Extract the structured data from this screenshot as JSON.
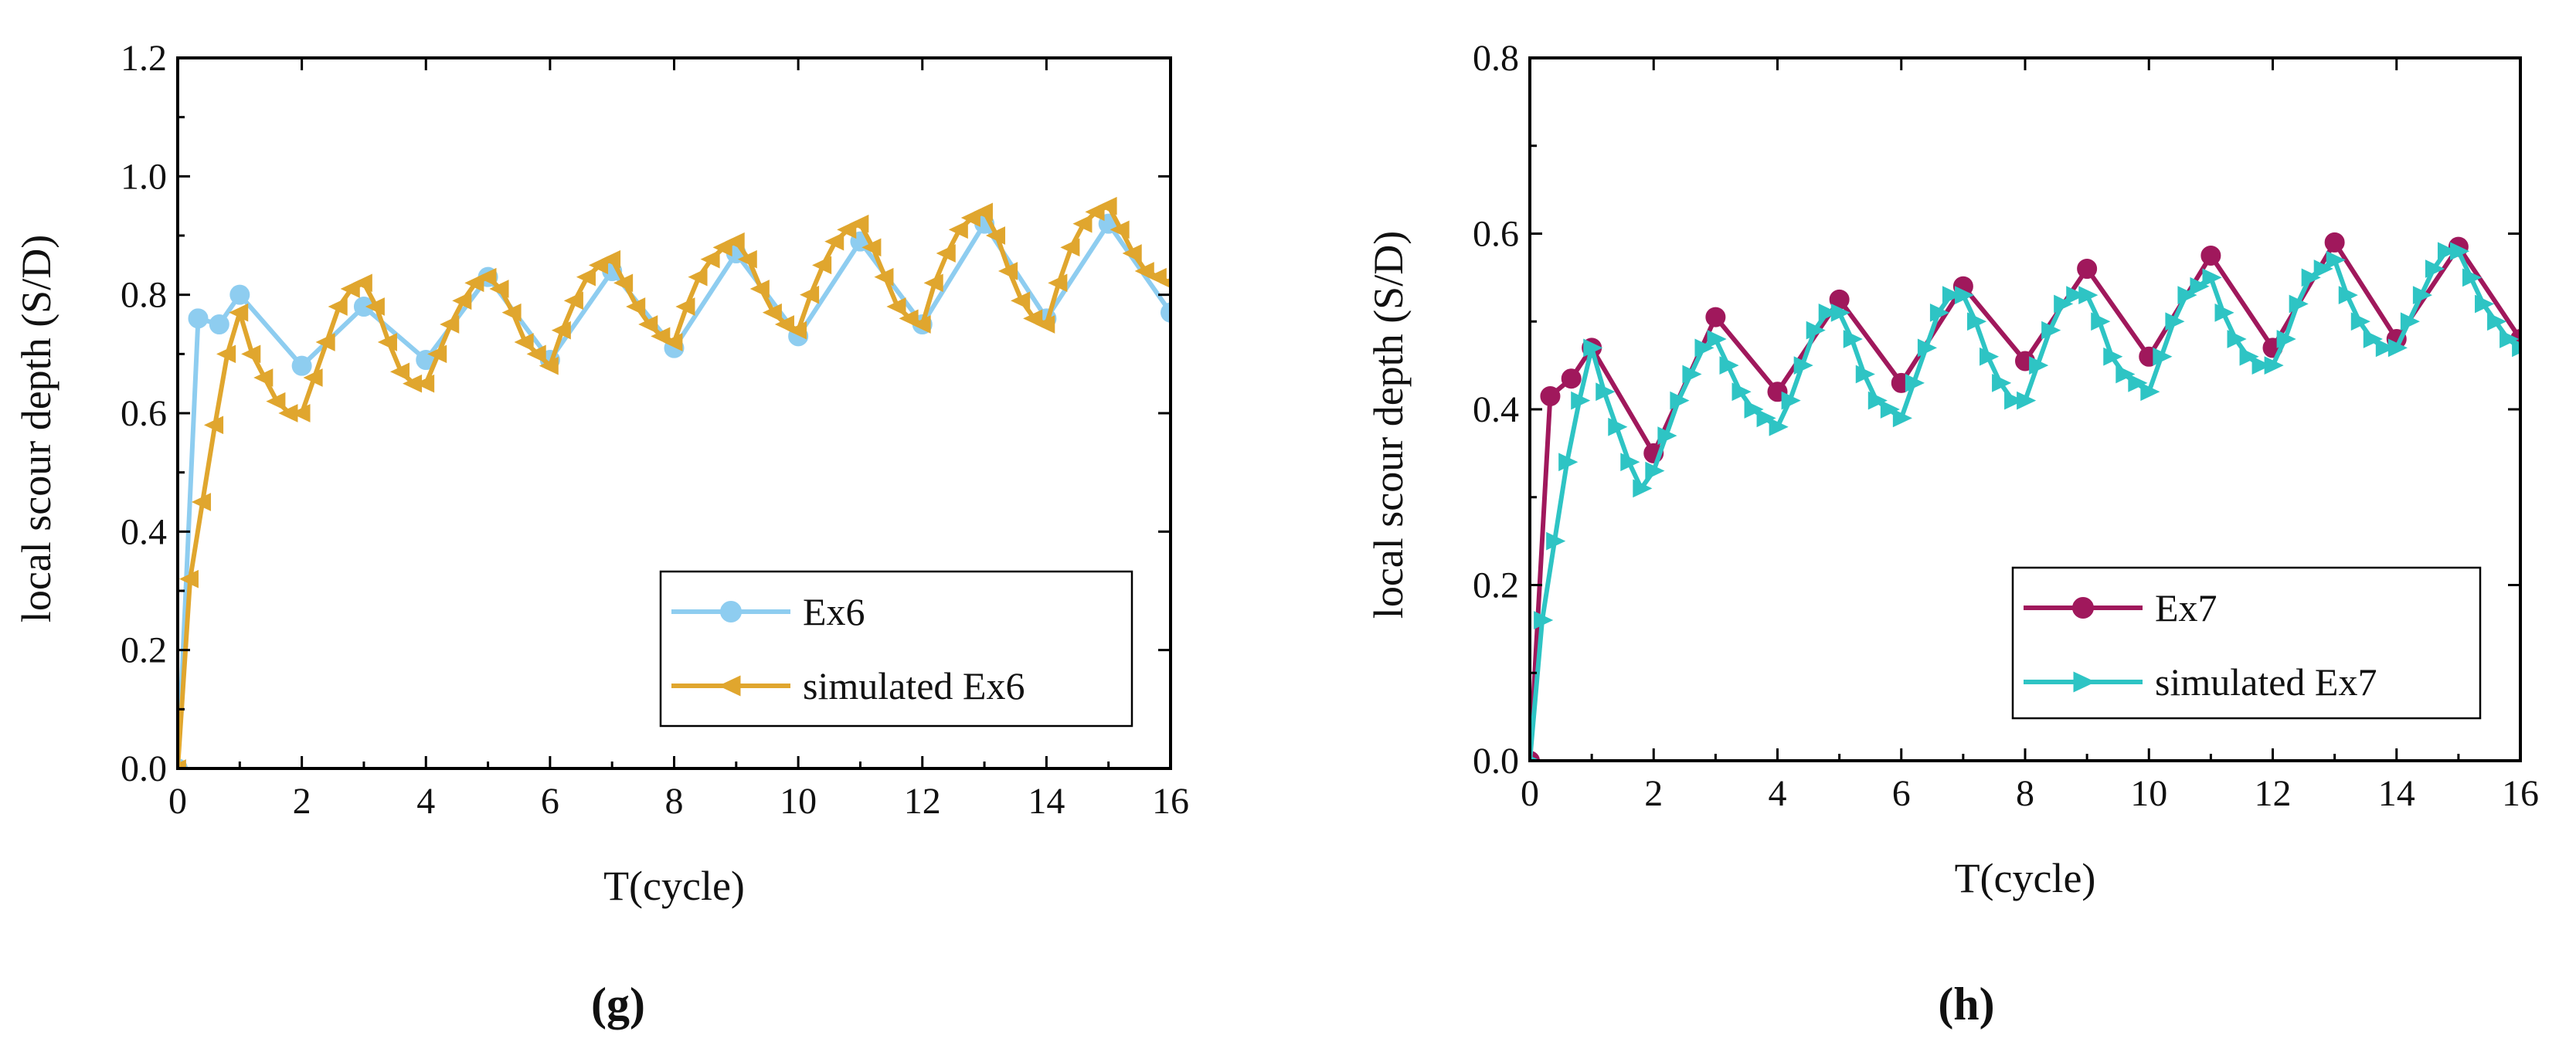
{
  "chart_data": [
    {
      "type": "line",
      "panel_label": "(g)",
      "xlabel": "T(cycle)",
      "ylabel": "local scour depth (S/D)",
      "xlim": [
        0,
        16
      ],
      "ylim": [
        0,
        1.2
      ],
      "xticks": [
        0,
        2,
        4,
        6,
        8,
        10,
        12,
        14,
        16
      ],
      "yticks": [
        0.0,
        0.2,
        0.4,
        0.6,
        0.8,
        1.0,
        1.2
      ],
      "xtick_labels": [
        "0",
        "2",
        "4",
        "6",
        "8",
        "10",
        "12",
        "14",
        "16"
      ],
      "ytick_labels": [
        "0.0",
        "0.2",
        "0.4",
        "0.6",
        "0.8",
        "1.0",
        "1.2"
      ],
      "grid": false,
      "legend_position": "bottom-right",
      "series": [
        {
          "name": "Ex6",
          "color": "#8ecdf0",
          "marker": "circle",
          "x": [
            0,
            0.33,
            0.67,
            1,
            2,
            3,
            4,
            5,
            6,
            7,
            8,
            9,
            10,
            11,
            12,
            13,
            14,
            15,
            16
          ],
          "y": [
            0,
            0.76,
            0.75,
            0.8,
            0.68,
            0.78,
            0.69,
            0.83,
            0.69,
            0.84,
            0.71,
            0.87,
            0.73,
            0.89,
            0.75,
            0.92,
            0.76,
            0.92,
            0.77
          ]
        },
        {
          "name": "simulated Ex6",
          "color": "#e0a62e",
          "marker": "triangle-left",
          "x": [
            0,
            0.2,
            0.4,
            0.6,
            0.8,
            1.0,
            1.2,
            1.4,
            1.6,
            1.8,
            2.0,
            2.2,
            2.4,
            2.6,
            2.8,
            3.0,
            3.2,
            3.4,
            3.6,
            3.8,
            4.0,
            4.2,
            4.4,
            4.6,
            4.8,
            5.0,
            5.2,
            5.4,
            5.6,
            5.8,
            6.0,
            6.2,
            6.4,
            6.6,
            6.8,
            7.0,
            7.2,
            7.4,
            7.6,
            7.8,
            8.0,
            8.2,
            8.4,
            8.6,
            8.8,
            9.0,
            9.2,
            9.4,
            9.6,
            9.8,
            10.0,
            10.2,
            10.4,
            10.6,
            10.8,
            11.0,
            11.2,
            11.4,
            11.6,
            11.8,
            12.0,
            12.2,
            12.4,
            12.6,
            12.8,
            13.0,
            13.2,
            13.4,
            13.6,
            13.8,
            14.0,
            14.2,
            14.4,
            14.6,
            14.8,
            15.0,
            15.2,
            15.4,
            15.6,
            15.8,
            16.0
          ],
          "y": [
            0,
            0.32,
            0.45,
            0.58,
            0.7,
            0.77,
            0.7,
            0.66,
            0.62,
            0.6,
            0.6,
            0.66,
            0.72,
            0.78,
            0.81,
            0.82,
            0.78,
            0.72,
            0.67,
            0.65,
            0.65,
            0.7,
            0.75,
            0.79,
            0.82,
            0.83,
            0.81,
            0.77,
            0.72,
            0.7,
            0.68,
            0.74,
            0.79,
            0.83,
            0.85,
            0.86,
            0.82,
            0.78,
            0.75,
            0.73,
            0.72,
            0.78,
            0.83,
            0.86,
            0.88,
            0.89,
            0.86,
            0.81,
            0.77,
            0.75,
            0.74,
            0.8,
            0.85,
            0.89,
            0.91,
            0.92,
            0.88,
            0.83,
            0.78,
            0.76,
            0.75,
            0.82,
            0.87,
            0.91,
            0.93,
            0.94,
            0.9,
            0.84,
            0.79,
            0.76,
            0.75,
            0.82,
            0.88,
            0.92,
            0.94,
            0.95,
            0.91,
            0.87,
            0.84,
            0.83,
            0.82
          ]
        }
      ]
    },
    {
      "type": "line",
      "panel_label": "(h)",
      "xlabel": "T(cycle)",
      "ylabel": "local scour depth (S/D)",
      "xlim": [
        0,
        16
      ],
      "ylim": [
        0,
        0.8
      ],
      "xticks": [
        0,
        2,
        4,
        6,
        8,
        10,
        12,
        14,
        16
      ],
      "yticks": [
        0.0,
        0.2,
        0.4,
        0.6,
        0.8
      ],
      "xtick_labels": [
        "0",
        "2",
        "4",
        "6",
        "8",
        "10",
        "12",
        "14",
        "16"
      ],
      "ytick_labels": [
        "0.0",
        "0.2",
        "0.4",
        "0.6",
        "0.8"
      ],
      "grid": false,
      "legend_position": "bottom-right",
      "series": [
        {
          "name": "Ex7",
          "color": "#a0185c",
          "marker": "circle",
          "x": [
            0,
            0.33,
            0.67,
            1,
            2,
            3,
            4,
            5,
            6,
            7,
            8,
            9,
            10,
            11,
            12,
            13,
            14,
            15,
            16
          ],
          "y": [
            0,
            0.415,
            0.435,
            0.47,
            0.35,
            0.505,
            0.42,
            0.525,
            0.43,
            0.54,
            0.455,
            0.56,
            0.46,
            0.575,
            0.47,
            0.59,
            0.48,
            0.585,
            0.48
          ]
        },
        {
          "name": "simulated Ex7",
          "color": "#2ec4c4",
          "marker": "triangle-right",
          "x": [
            0,
            0.2,
            0.4,
            0.6,
            0.8,
            1.0,
            1.2,
            1.4,
            1.6,
            1.8,
            2.0,
            2.2,
            2.4,
            2.6,
            2.8,
            3.0,
            3.2,
            3.4,
            3.6,
            3.8,
            4.0,
            4.2,
            4.4,
            4.6,
            4.8,
            5.0,
            5.2,
            5.4,
            5.6,
            5.8,
            6.0,
            6.2,
            6.4,
            6.6,
            6.8,
            7.0,
            7.2,
            7.4,
            7.6,
            7.8,
            8.0,
            8.2,
            8.4,
            8.6,
            8.8,
            9.0,
            9.2,
            9.4,
            9.6,
            9.8,
            10.0,
            10.2,
            10.4,
            10.6,
            10.8,
            11.0,
            11.2,
            11.4,
            11.6,
            11.8,
            12.0,
            12.2,
            12.4,
            12.6,
            12.8,
            13.0,
            13.2,
            13.4,
            13.6,
            13.8,
            14.0,
            14.2,
            14.4,
            14.6,
            14.8,
            15.0,
            15.2,
            15.4,
            15.6,
            15.8,
            16.0
          ],
          "y": [
            0,
            0.16,
            0.25,
            0.34,
            0.41,
            0.47,
            0.42,
            0.38,
            0.34,
            0.31,
            0.33,
            0.37,
            0.41,
            0.44,
            0.47,
            0.48,
            0.45,
            0.42,
            0.4,
            0.39,
            0.38,
            0.41,
            0.45,
            0.49,
            0.51,
            0.51,
            0.48,
            0.44,
            0.41,
            0.4,
            0.39,
            0.43,
            0.47,
            0.51,
            0.53,
            0.53,
            0.5,
            0.46,
            0.43,
            0.41,
            0.41,
            0.45,
            0.49,
            0.52,
            0.53,
            0.53,
            0.5,
            0.46,
            0.44,
            0.43,
            0.42,
            0.46,
            0.5,
            0.53,
            0.54,
            0.55,
            0.51,
            0.48,
            0.46,
            0.45,
            0.45,
            0.48,
            0.52,
            0.55,
            0.56,
            0.57,
            0.53,
            0.5,
            0.48,
            0.47,
            0.47,
            0.5,
            0.53,
            0.56,
            0.58,
            0.58,
            0.55,
            0.52,
            0.5,
            0.48,
            0.47
          ]
        }
      ]
    }
  ]
}
